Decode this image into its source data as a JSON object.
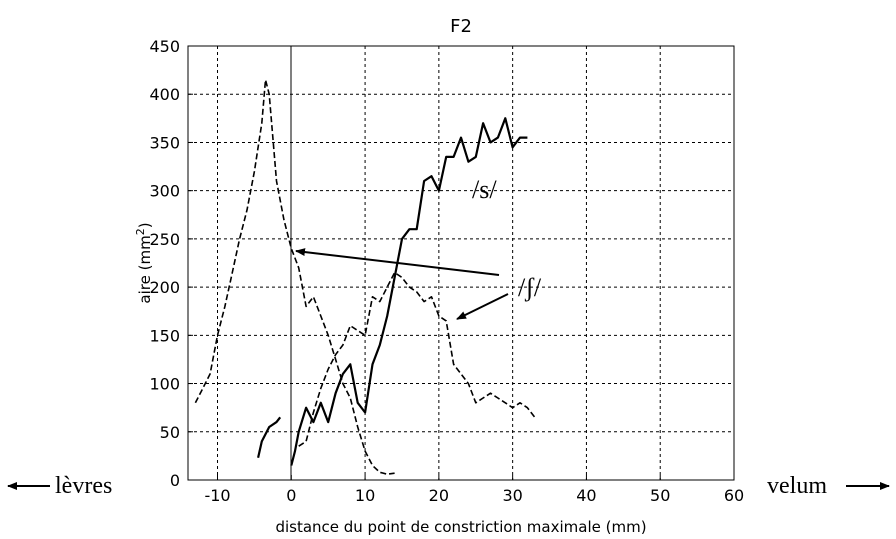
{
  "chart_data": {
    "type": "line",
    "title": "F2",
    "xlabel": "distance du point de constriction maximale (mm)",
    "ylabel": "aire (mm²)",
    "ylabel_main": "aire (mm",
    "ylabel_sup": "2",
    "ylabel_close": ")",
    "xlim": [
      -14,
      60
    ],
    "ylim": [
      0,
      450
    ],
    "xticks": [
      -10,
      0,
      10,
      20,
      30,
      40,
      50,
      60
    ],
    "yticks": [
      0,
      50,
      100,
      150,
      200,
      250,
      300,
      350,
      400,
      450
    ],
    "grid": true,
    "series": [
      {
        "name": "/ʃ/",
        "style": "dashed",
        "segments": [
          {
            "x": [
              -13,
              -12,
              -11,
              -10,
              -9,
              -8,
              -7,
              -6,
              -5,
              -4,
              -3.5,
              -3,
              -2,
              -1,
              0,
              1,
              2,
              3,
              4,
              5,
              6,
              7,
              8,
              9,
              10,
              11,
              12,
              13,
              14
            ],
            "y": [
              80,
              95,
              110,
              150,
              180,
              215,
              250,
              280,
              320,
              370,
              415,
              400,
              310,
              270,
              240,
              220,
              180,
              190,
              170,
              150,
              125,
              100,
              85,
              55,
              30,
              15,
              8,
              6,
              7
            ]
          },
          {
            "x": [
              1,
              2,
              3,
              4,
              5,
              6,
              7,
              8,
              9,
              10,
              11,
              12,
              13,
              14,
              15,
              16,
              17,
              18,
              19,
              20,
              21,
              22,
              23,
              24,
              25,
              26,
              27,
              28,
              29,
              30,
              31,
              32,
              33
            ],
            "y": [
              35,
              40,
              70,
              95,
              115,
              130,
              140,
              160,
              155,
              150,
              190,
              185,
              200,
              215,
              210,
              200,
              195,
              185,
              190,
              170,
              165,
              120,
              110,
              100,
              80,
              85,
              90,
              85,
              80,
              75,
              80,
              75,
              65
            ]
          }
        ]
      },
      {
        "name": "/s/",
        "style": "solid",
        "segments": [
          {
            "x": [
              -4.5,
              -4,
              -3,
              -2,
              -1.5
            ],
            "y": [
              23,
              40,
              55,
              60,
              65
            ]
          },
          {
            "x": [
              0,
              0.5,
              1,
              2,
              3,
              4,
              5,
              6,
              7,
              8,
              9,
              10,
              11,
              12,
              13,
              14,
              15,
              16,
              17,
              18,
              19,
              20,
              21,
              22,
              23,
              24,
              25,
              26,
              27,
              28,
              29,
              30,
              31,
              32
            ],
            "y": [
              15,
              30,
              50,
              75,
              60,
              80,
              60,
              90,
              110,
              120,
              80,
              70,
              120,
              140,
              170,
              210,
              250,
              260,
              260,
              310,
              315,
              300,
              335,
              335,
              355,
              330,
              335,
              370,
              350,
              355,
              375,
              345,
              355,
              355
            ]
          }
        ]
      }
    ],
    "annotations": {
      "s_label": "/s/",
      "sh_label": "/ʃ/",
      "left_label": "lèvres",
      "right_label": "velum"
    }
  }
}
